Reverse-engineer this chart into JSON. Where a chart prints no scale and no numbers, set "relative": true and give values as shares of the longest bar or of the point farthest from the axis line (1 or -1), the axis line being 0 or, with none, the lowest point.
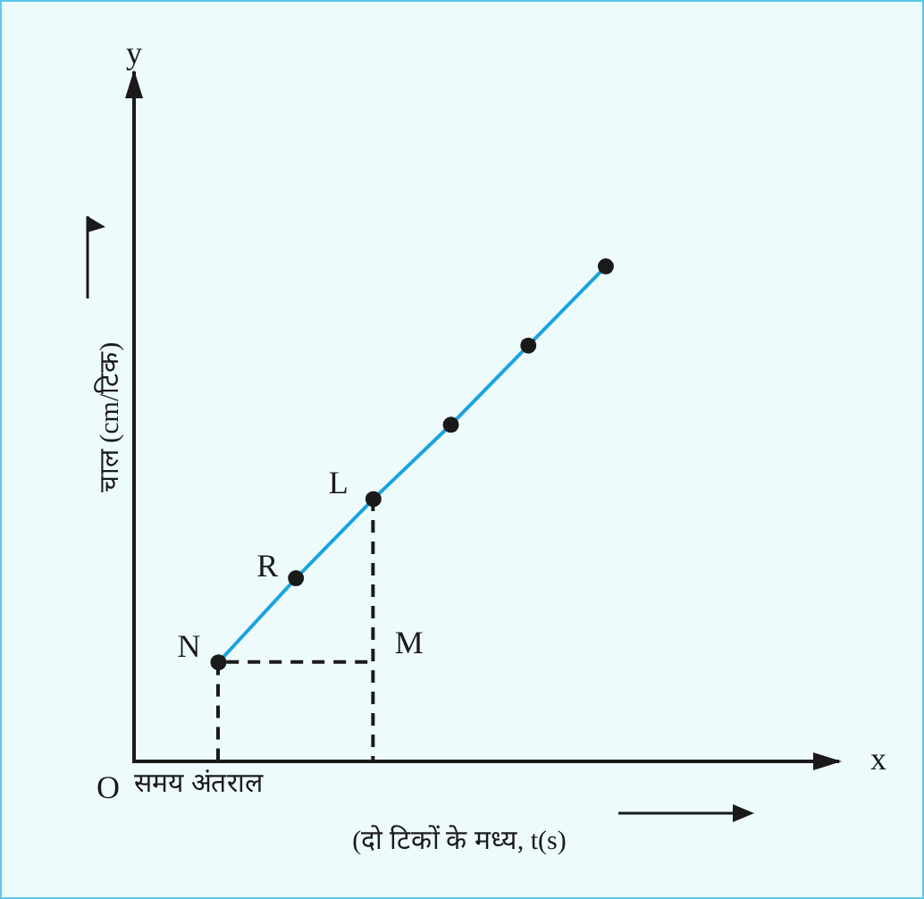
{
  "chart_data": {
    "type": "line",
    "relative": true,
    "xlabel": "समय अंतराल",
    "ylabel": "चाल (cm/टिक)",
    "grid": false,
    "legend": false,
    "marker": "circle",
    "categories": [
      null,
      null,
      null,
      null,
      null,
      null
    ],
    "series": [
      {
        "color": "#1aa3e0",
        "values": [
          0.2,
          0.37,
          0.53,
          0.68,
          0.84,
          1.0
        ]
      }
    ],
    "annotations": [
      "N",
      "R",
      "L",
      "M",
      "O",
      "y",
      "x",
      "(दो टिकों के मध्य, t(s)"
    ]
  }
}
